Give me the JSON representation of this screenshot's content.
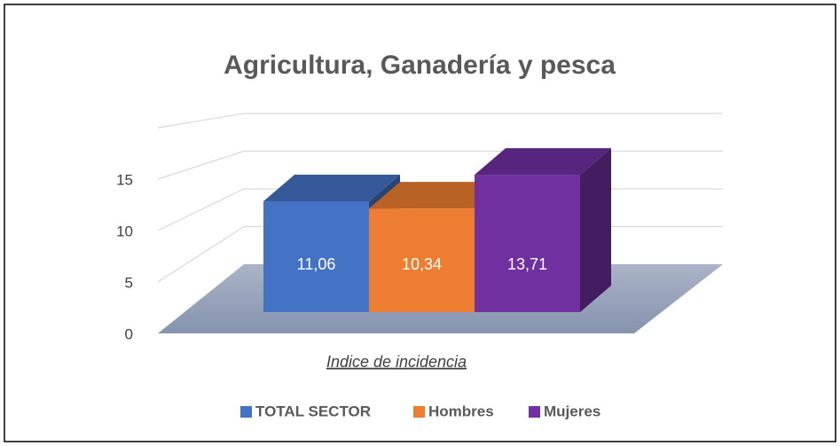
{
  "chart_data": {
    "type": "bar3d",
    "title": "Agricultura, Ganadería y pesca",
    "categories": [
      "Indice de incidencia"
    ],
    "series": [
      {
        "name": "TOTAL SECTOR",
        "color": "#4472c4",
        "values": [
          11.06
        ],
        "value_labels": [
          "11,06"
        ]
      },
      {
        "name": "Hombres",
        "color": "#ed7d31",
        "values": [
          10.34
        ],
        "value_labels": [
          "10,34"
        ]
      },
      {
        "name": "Mujeres",
        "color": "#7030a0",
        "values": [
          13.71
        ],
        "value_labels": [
          "13,71"
        ]
      }
    ],
    "ylim": [
      0,
      20
    ],
    "yticks": [
      0,
      5,
      10,
      15
    ],
    "grid": true,
    "legend": "bottom"
  }
}
